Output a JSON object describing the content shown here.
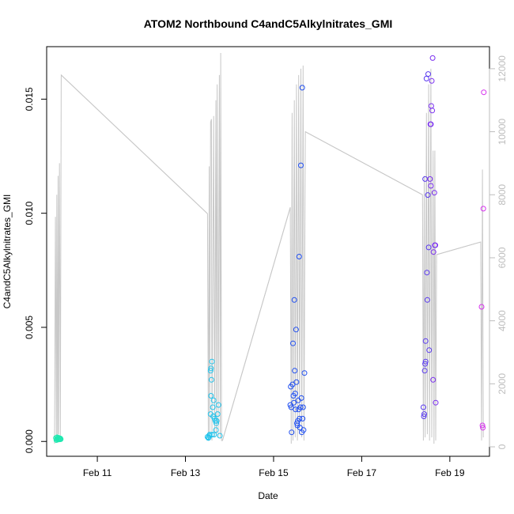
{
  "chart_data": {
    "type": "scatter",
    "title": "ATOM2 Northbound C4andC5Alkylnitrates_GMI",
    "xlabel": "Date",
    "ylabel": "C4andC5Alkylnitrates_GMI",
    "x_unit": "day of February (decimal)",
    "xlim": [
      9.85,
      19.9
    ],
    "ylim": [
      -0.00065,
      0.0173
    ],
    "x_ticks": [
      {
        "value": 11,
        "label": "Feb 11"
      },
      {
        "value": 13,
        "label": "Feb 13"
      },
      {
        "value": 15,
        "label": "Feb 15"
      },
      {
        "value": 17,
        "label": "Feb 17"
      },
      {
        "value": 19,
        "label": "Feb 19"
      }
    ],
    "y_ticks": [
      {
        "value": 0.0,
        "label": "0.000"
      },
      {
        "value": 0.005,
        "label": "0.005"
      },
      {
        "value": 0.01,
        "label": "0.010"
      },
      {
        "value": 0.015,
        "label": "0.015"
      }
    ],
    "y2_ticks": [
      {
        "value": 0,
        "label": "0"
      },
      {
        "value": 2000,
        "label": "2000"
      },
      {
        "value": 4000,
        "label": "4000"
      },
      {
        "value": 6000,
        "label": "6000"
      },
      {
        "value": 8000,
        "label": "8000"
      },
      {
        "value": 10000,
        "label": "10000"
      },
      {
        "value": 12000,
        "label": "12000"
      }
    ],
    "y2lim": [
      -300,
      12700
    ],
    "grid": false,
    "legend": "none",
    "colors": {
      "altitude_line": "#c8c8c8",
      "flight1": "#1fe8b0",
      "flight2": "#22c4ec",
      "flight3": "#1f4ef0",
      "flight4": "#7a2ef0",
      "flight5": "#d630ee"
    },
    "points": [
      {
        "x": 10.06,
        "y": 0.00015,
        "color": "#1fe8b0"
      },
      {
        "x": 10.08,
        "y": 0.0001,
        "color": "#1fe8b0"
      },
      {
        "x": 10.09,
        "y": 0.00018,
        "color": "#1fe8b0"
      },
      {
        "x": 10.1,
        "y": 0.00012,
        "color": "#1fe8b0"
      },
      {
        "x": 10.11,
        "y": 8e-05,
        "color": "#1fe8b0"
      },
      {
        "x": 10.12,
        "y": 0.00016,
        "color": "#1fe8b0"
      },
      {
        "x": 10.13,
        "y": 0.00011,
        "color": "#1fe8b0"
      },
      {
        "x": 10.14,
        "y": 0.00014,
        "color": "#1fe8b0"
      },
      {
        "x": 10.15,
        "y": 9e-05,
        "color": "#1fe8b0"
      },
      {
        "x": 10.16,
        "y": 0.00013,
        "color": "#1fe8b0"
      },
      {
        "x": 10.17,
        "y": 0.0001,
        "color": "#1fe8b0"
      },
      {
        "x": 10.07,
        "y": 6e-05,
        "color": "#1fe8b0"
      },
      {
        "x": 13.5,
        "y": 0.0002,
        "color": "#22c4ec"
      },
      {
        "x": 13.52,
        "y": 0.00015,
        "color": "#22c4ec"
      },
      {
        "x": 13.54,
        "y": 0.00025,
        "color": "#22c4ec"
      },
      {
        "x": 13.55,
        "y": 0.0003,
        "color": "#22c4ec"
      },
      {
        "x": 13.57,
        "y": 0.0031,
        "color": "#22c4ec"
      },
      {
        "x": 13.58,
        "y": 0.0032,
        "color": "#22c4ec"
      },
      {
        "x": 13.6,
        "y": 0.0035,
        "color": "#22c4ec"
      },
      {
        "x": 13.59,
        "y": 0.0027,
        "color": "#22c4ec"
      },
      {
        "x": 13.58,
        "y": 0.002,
        "color": "#22c4ec"
      },
      {
        "x": 13.57,
        "y": 0.0012,
        "color": "#22c4ec"
      },
      {
        "x": 13.62,
        "y": 0.0015,
        "color": "#22c4ec"
      },
      {
        "x": 13.64,
        "y": 0.0018,
        "color": "#22c4ec"
      },
      {
        "x": 13.63,
        "y": 0.0011,
        "color": "#22c4ec"
      },
      {
        "x": 13.66,
        "y": 0.001,
        "color": "#22c4ec"
      },
      {
        "x": 13.68,
        "y": 0.0009,
        "color": "#22c4ec"
      },
      {
        "x": 13.7,
        "y": 0.0008,
        "color": "#22c4ec"
      },
      {
        "x": 13.71,
        "y": 0.0009,
        "color": "#22c4ec"
      },
      {
        "x": 13.73,
        "y": 0.0012,
        "color": "#22c4ec"
      },
      {
        "x": 13.75,
        "y": 0.0016,
        "color": "#22c4ec"
      },
      {
        "x": 13.69,
        "y": 0.0005,
        "color": "#22c4ec"
      },
      {
        "x": 13.6,
        "y": 0.0003,
        "color": "#22c4ec"
      },
      {
        "x": 13.65,
        "y": 0.0003,
        "color": "#22c4ec"
      },
      {
        "x": 13.78,
        "y": 0.00025,
        "color": "#22c4ec"
      },
      {
        "x": 13.53,
        "y": 0.00018,
        "color": "#22c4ec"
      },
      {
        "x": 15.38,
        "y": 0.0016,
        "color": "#1f4ef0"
      },
      {
        "x": 15.39,
        "y": 0.0024,
        "color": "#1f4ef0"
      },
      {
        "x": 15.4,
        "y": 0.0015,
        "color": "#1f4ef0"
      },
      {
        "x": 15.41,
        "y": 0.0004,
        "color": "#1f4ef0"
      },
      {
        "x": 15.43,
        "y": 0.0025,
        "color": "#1f4ef0"
      },
      {
        "x": 15.44,
        "y": 0.0043,
        "color": "#1f4ef0"
      },
      {
        "x": 15.45,
        "y": 0.002,
        "color": "#1f4ef0"
      },
      {
        "x": 15.47,
        "y": 0.0062,
        "color": "#1f4ef0"
      },
      {
        "x": 15.48,
        "y": 0.0031,
        "color": "#1f4ef0"
      },
      {
        "x": 15.49,
        "y": 0.0021,
        "color": "#1f4ef0"
      },
      {
        "x": 15.5,
        "y": 0.0014,
        "color": "#1f4ef0"
      },
      {
        "x": 15.51,
        "y": 0.0049,
        "color": "#1f4ef0"
      },
      {
        "x": 15.52,
        "y": 0.0026,
        "color": "#1f4ef0"
      },
      {
        "x": 15.53,
        "y": 0.0008,
        "color": "#1f4ef0"
      },
      {
        "x": 15.55,
        "y": 0.0009,
        "color": "#1f4ef0"
      },
      {
        "x": 15.56,
        "y": 0.0018,
        "color": "#1f4ef0"
      },
      {
        "x": 15.57,
        "y": 0.0014,
        "color": "#1f4ef0"
      },
      {
        "x": 15.58,
        "y": 0.0081,
        "color": "#1f4ef0"
      },
      {
        "x": 15.59,
        "y": 0.001,
        "color": "#1f4ef0"
      },
      {
        "x": 15.6,
        "y": 0.0006,
        "color": "#1f4ef0"
      },
      {
        "x": 15.61,
        "y": 0.0015,
        "color": "#1f4ef0"
      },
      {
        "x": 15.62,
        "y": 0.0121,
        "color": "#1f4ef0"
      },
      {
        "x": 15.63,
        "y": 0.0019,
        "color": "#1f4ef0"
      },
      {
        "x": 15.64,
        "y": 0.0004,
        "color": "#1f4ef0"
      },
      {
        "x": 15.65,
        "y": 0.0155,
        "color": "#1f4ef0"
      },
      {
        "x": 15.66,
        "y": 0.001,
        "color": "#1f4ef0"
      },
      {
        "x": 15.67,
        "y": 0.0015,
        "color": "#1f4ef0"
      },
      {
        "x": 15.68,
        "y": 0.0005,
        "color": "#1f4ef0"
      },
      {
        "x": 15.7,
        "y": 0.003,
        "color": "#1f4ef0"
      },
      {
        "x": 15.54,
        "y": 0.0007,
        "color": "#1f4ef0"
      },
      {
        "x": 15.46,
        "y": 0.0017,
        "color": "#1f4ef0"
      },
      {
        "x": 18.4,
        "y": 0.0015,
        "color": "#5a3af0"
      },
      {
        "x": 18.41,
        "y": 0.0011,
        "color": "#5a3af0"
      },
      {
        "x": 18.42,
        "y": 0.0012,
        "color": "#5a3af0"
      },
      {
        "x": 18.43,
        "y": 0.0031,
        "color": "#5a3af0"
      },
      {
        "x": 18.44,
        "y": 0.0034,
        "color": "#5a3af0"
      },
      {
        "x": 18.45,
        "y": 0.0035,
        "color": "#5a3af0"
      },
      {
        "x": 18.45,
        "y": 0.0044,
        "color": "#5a3af0"
      },
      {
        "x": 18.44,
        "y": 0.0115,
        "color": "#5a3af0"
      },
      {
        "x": 18.47,
        "y": 0.0159,
        "color": "#5a3af0"
      },
      {
        "x": 18.48,
        "y": 0.0074,
        "color": "#5a3af0"
      },
      {
        "x": 18.49,
        "y": 0.0062,
        "color": "#5a3af0"
      },
      {
        "x": 18.5,
        "y": 0.0108,
        "color": "#5a3af0"
      },
      {
        "x": 18.51,
        "y": 0.0161,
        "color": "#5a3af0"
      },
      {
        "x": 18.52,
        "y": 0.0085,
        "color": "#5a3af0"
      },
      {
        "x": 18.53,
        "y": 0.004,
        "color": "#5a3af0"
      },
      {
        "x": 18.55,
        "y": 0.0115,
        "color": "#7a2ef0"
      },
      {
        "x": 18.56,
        "y": 0.0139,
        "color": "#7a2ef0"
      },
      {
        "x": 18.57,
        "y": 0.0112,
        "color": "#7a2ef0"
      },
      {
        "x": 18.57,
        "y": 0.0139,
        "color": "#7a2ef0"
      },
      {
        "x": 18.58,
        "y": 0.0147,
        "color": "#7a2ef0"
      },
      {
        "x": 18.59,
        "y": 0.0158,
        "color": "#7a2ef0"
      },
      {
        "x": 18.6,
        "y": 0.0145,
        "color": "#7a2ef0"
      },
      {
        "x": 18.61,
        "y": 0.0168,
        "color": "#7a2ef0"
      },
      {
        "x": 18.62,
        "y": 0.0027,
        "color": "#7a2ef0"
      },
      {
        "x": 18.63,
        "y": 0.0083,
        "color": "#7a2ef0"
      },
      {
        "x": 18.65,
        "y": 0.0109,
        "color": "#7a2ef0"
      },
      {
        "x": 18.66,
        "y": 0.0086,
        "color": "#7a2ef0"
      },
      {
        "x": 18.67,
        "y": 0.0086,
        "color": "#7a2ef0"
      },
      {
        "x": 18.68,
        "y": 0.0017,
        "color": "#7a2ef0"
      },
      {
        "x": 19.72,
        "y": 0.0059,
        "color": "#d630ee"
      },
      {
        "x": 19.74,
        "y": 0.0007,
        "color": "#d630ee"
      },
      {
        "x": 19.75,
        "y": 0.0006,
        "color": "#d630ee"
      },
      {
        "x": 19.76,
        "y": 0.0102,
        "color": "#d630ee"
      },
      {
        "x": 19.77,
        "y": 0.0153,
        "color": "#d630ee"
      }
    ],
    "altitude_series": [
      [
        10.03,
        100
      ],
      [
        10.05,
        7300
      ],
      [
        10.07,
        200
      ],
      [
        10.08,
        8000
      ],
      [
        10.1,
        300
      ],
      [
        10.11,
        8600
      ],
      [
        10.12,
        400
      ],
      [
        10.14,
        9000
      ],
      [
        10.16,
        200
      ],
      [
        10.18,
        11800
      ],
      [
        13.5,
        7400
      ],
      [
        13.52,
        200
      ],
      [
        13.54,
        8900
      ],
      [
        13.55,
        400
      ],
      [
        13.57,
        10300
      ],
      [
        13.59,
        10400
      ],
      [
        13.6,
        200
      ],
      [
        13.64,
        10500
      ],
      [
        13.66,
        300
      ],
      [
        13.69,
        11000
      ],
      [
        13.7,
        400
      ],
      [
        13.72,
        11500
      ],
      [
        13.74,
        300
      ],
      [
        13.77,
        11800
      ],
      [
        13.79,
        300
      ],
      [
        13.8,
        12500
      ],
      [
        13.82,
        200
      ],
      [
        13.84,
        200
      ],
      [
        15.38,
        7600
      ],
      [
        15.4,
        100
      ],
      [
        15.42,
        10600
      ],
      [
        15.44,
        200
      ],
      [
        15.47,
        11000
      ],
      [
        15.49,
        300
      ],
      [
        15.52,
        11500
      ],
      [
        15.54,
        200
      ],
      [
        15.57,
        11800
      ],
      [
        15.59,
        400
      ],
      [
        15.62,
        12000
      ],
      [
        15.64,
        300
      ],
      [
        15.67,
        12100
      ],
      [
        15.69,
        200
      ],
      [
        15.72,
        10000
      ],
      [
        18.38,
        8000
      ],
      [
        18.4,
        200
      ],
      [
        18.42,
        8600
      ],
      [
        18.44,
        300
      ],
      [
        18.47,
        10600
      ],
      [
        18.49,
        400
      ],
      [
        18.52,
        11500
      ],
      [
        18.54,
        200
      ],
      [
        18.57,
        12000
      ],
      [
        18.59,
        300
      ],
      [
        18.62,
        9400
      ],
      [
        18.64,
        100
      ],
      [
        18.66,
        9400
      ],
      [
        18.68,
        200
      ],
      [
        18.7,
        6100
      ],
      [
        19.7,
        6500
      ],
      [
        19.72,
        200
      ],
      [
        19.74,
        8800
      ],
      [
        19.76,
        300
      ]
    ],
    "altitude_connectors": [
      [
        [
          10.18,
          11800
        ],
        [
          13.5,
          7400
        ]
      ],
      [
        [
          13.84,
          200
        ],
        [
          15.38,
          7600
        ]
      ],
      [
        [
          15.72,
          10000
        ],
        [
          18.38,
          8000
        ]
      ],
      [
        [
          18.7,
          6100
        ],
        [
          19.7,
          6500
        ]
      ]
    ]
  }
}
